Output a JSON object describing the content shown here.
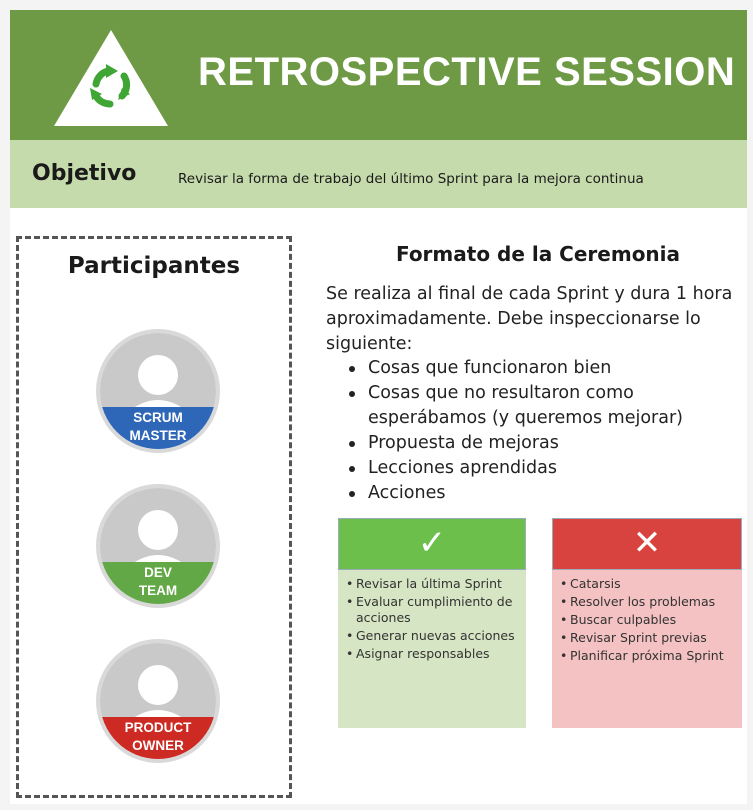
{
  "header": {
    "title": "RETROSPECTIVE SESSION",
    "logo_icon": "recycle-arrows-triangle-icon"
  },
  "objective": {
    "label": "Objetivo",
    "text": "Revisar la forma de trabajo del último Sprint para la mejora continua"
  },
  "participants": {
    "title": "Participantes",
    "roles": [
      {
        "line1": "SCRUM",
        "line2": "MASTER",
        "color": "#2e67b8"
      },
      {
        "line1": "DEV",
        "line2": "TEAM",
        "color": "#62a846"
      },
      {
        "line1": "PRODUCT",
        "line2": "OWNER",
        "color": "#cc2a22"
      }
    ]
  },
  "format": {
    "title": "Formato de la Ceremonia",
    "intro": "Se realiza al final de cada Sprint y dura 1 hora aproximadamente. Debe inspeccionarse lo siguiente:",
    "items": [
      "Cosas que funcionaron bien",
      "Cosas que no resultaron como esperábamos (y queremos mejorar)",
      "Propuesta de mejoras",
      "Lecciones aprendidas",
      "Acciones"
    ]
  },
  "good_box": {
    "icon": "check-icon",
    "symbol": "✓",
    "items": [
      "Revisar la última Sprint",
      "Evaluar cumplimiento de acciones",
      "Generar nuevas acciones",
      "Asignar responsables"
    ]
  },
  "bad_box": {
    "icon": "cross-icon",
    "symbol": "✕",
    "items": [
      "Catarsis",
      "Resolver los problemas",
      "Buscar culpables",
      "Revisar Sprint previas",
      "Planificar próxima Sprint"
    ]
  }
}
